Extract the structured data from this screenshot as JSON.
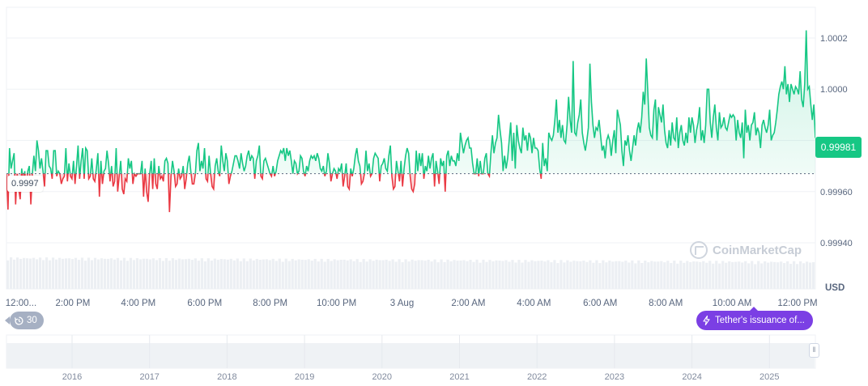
{
  "chart_data": {
    "type": "area",
    "title": "",
    "unit_label": "USD",
    "current_price": "0.99981",
    "open_price_label": "0.9997",
    "baseline": 0.99967,
    "ylim": [
      0.99922,
      1.00032
    ],
    "y_ticks": [
      {
        "value": 1.0002,
        "label": "1.0002"
      },
      {
        "value": 1.0,
        "label": "1.0000"
      },
      {
        "value": 0.9998,
        "label": ""
      },
      {
        "value": 0.9996,
        "label": "0.99960"
      },
      {
        "value": 0.9994,
        "label": "0.99940"
      }
    ],
    "x_ticks": [
      "12:00...",
      "2:00 PM",
      "4:00 PM",
      "6:00 PM",
      "8:00 PM",
      "10:00 PM",
      "3 Aug",
      "2:00 AM",
      "4:00 AM",
      "6:00 AM",
      "8:00 AM",
      "10:00 AM",
      "12:00 PM"
    ],
    "x_tick_fractions": [
      0.018,
      0.082,
      0.163,
      0.245,
      0.326,
      0.408,
      0.489,
      0.571,
      0.652,
      0.734,
      0.815,
      0.897,
      0.978
    ],
    "series_values": [
      0.99967,
      0.99953,
      0.99977,
      0.99969,
      0.99972,
      0.99975,
      0.99955,
      0.99967,
      0.99961,
      0.99957,
      0.99969,
      0.99964,
      0.99968,
      0.9996,
      0.99968,
      0.9997,
      0.99955,
      0.99967,
      0.99974,
      0.99968,
      0.9998,
      0.99976,
      0.99969,
      0.99973,
      0.99968,
      0.99962,
      0.99976,
      0.99976,
      0.9997,
      0.99969,
      0.99965,
      0.99976,
      0.99976,
      0.99966,
      0.99968,
      0.99967,
      0.99963,
      0.99965,
      0.99966,
      0.99977,
      0.99964,
      0.99971,
      0.99966,
      0.99965,
      0.99972,
      0.99963,
      0.9997,
      0.99978,
      0.99965,
      0.99972,
      0.99977,
      0.99965,
      0.99977,
      0.99976,
      0.99965,
      0.99966,
      0.99973,
      0.99965,
      0.99964,
      0.99969,
      0.99975,
      0.99958,
      0.99972,
      0.99963,
      0.99968,
      0.99969,
      0.99976,
      0.99971,
      0.99964,
      0.9997,
      0.99962,
      0.99964,
      0.99977,
      0.9996,
      0.99966,
      0.99972,
      0.99961,
      0.99959,
      0.99965,
      0.99964,
      0.99973,
      0.99969,
      0.99972,
      0.99963,
      0.99967,
      0.99966,
      0.99967,
      0.99967,
      0.99967,
      0.99972,
      0.99958,
      0.99969,
      0.9996,
      0.99956,
      0.99967,
      0.99972,
      0.99961,
      0.99973,
      0.99963,
      0.99961,
      0.9997,
      0.99965,
      0.99966,
      0.99964,
      0.99972,
      0.99973,
      0.99971,
      0.99952,
      0.99966,
      0.99972,
      0.99968,
      0.99962,
      0.99963,
      0.99969,
      0.99965,
      0.99966,
      0.9997,
      0.99961,
      0.99965,
      0.99971,
      0.99974,
      0.99968,
      0.99963,
      0.99963,
      0.99967,
      0.99976,
      0.99979,
      0.99968,
      0.99972,
      0.99969,
      0.99977,
      0.99965,
      0.99964,
      0.99974,
      0.99967,
      0.99962,
      0.99961,
      0.9997,
      0.99973,
      0.99968,
      0.99966,
      0.99978,
      0.99972,
      0.99968,
      0.99975,
      0.99972,
      0.99963,
      0.99966,
      0.99968,
      0.99971,
      0.99974,
      0.99974,
      0.99972,
      0.99969,
      0.99975,
      0.99971,
      0.99968,
      0.9997,
      0.99974,
      0.99976,
      0.99972,
      0.99974,
      0.99973,
      0.99965,
      0.99972,
      0.99974,
      0.99978,
      0.99966,
      0.99965,
      0.99972,
      0.99973,
      0.99971,
      0.99969,
      0.99967,
      0.99966,
      0.9997,
      0.99966,
      0.99968,
      0.99972,
      0.99974,
      0.99976,
      0.99975,
      0.99977,
      0.99972,
      0.99977,
      0.99974,
      0.99976,
      0.99972,
      0.99967,
      0.99972,
      0.99971,
      0.99967,
      0.99968,
      0.99974,
      0.99973,
      0.99968,
      0.99966,
      0.9997,
      0.99968,
      0.99972,
      0.99974,
      0.99973,
      0.99974,
      0.99972,
      0.99975,
      0.99973,
      0.99969,
      0.99968,
      0.9997,
      0.99966,
      0.99968,
      0.99975,
      0.99971,
      0.99964,
      0.99967,
      0.99969,
      0.99968,
      0.99965,
      0.99969,
      0.99968,
      0.99971,
      0.99962,
      0.99966,
      0.99971,
      0.99962,
      0.99961,
      0.99969,
      0.99966,
      0.99969,
      0.99974,
      0.99977,
      0.99972,
      0.9997,
      0.99963,
      0.99964,
      0.99967,
      0.99976,
      0.99968,
      0.99971,
      0.99966,
      0.99967,
      0.99973,
      0.99975,
      0.99974,
      0.99973,
      0.99964,
      0.9997,
      0.99971,
      0.99973,
      0.99969,
      0.99968,
      0.99974,
      0.99978,
      0.99966,
      0.99961,
      0.99962,
      0.99972,
      0.99968,
      0.99964,
      0.99972,
      0.99962,
      0.99969,
      0.99974,
      0.99977,
      0.99975,
      0.99966,
      0.99961,
      0.9996,
      0.99963,
      0.99976,
      0.99968,
      0.99975,
      0.9997,
      0.99975,
      0.99965,
      0.9997,
      0.99968,
      0.99974,
      0.99969,
      0.99973,
      0.99975,
      0.99962,
      0.99972,
      0.99968,
      0.99963,
      0.99973,
      0.9997,
      0.99972,
      0.9996,
      0.99974,
      0.99976,
      0.9997,
      0.99974,
      0.99972,
      0.99972,
      0.9997,
      0.99975,
      0.99972,
      0.99983,
      0.99979,
      0.99975,
      0.99978,
      0.9998,
      0.99981,
      0.99977,
      0.99977,
      0.99971,
      0.99967,
      0.99967,
      0.99973,
      0.99966,
      0.99972,
      0.99967,
      0.99967,
      0.99973,
      0.99975,
      0.99967,
      0.99966,
      0.99975,
      0.99982,
      0.99975,
      0.99979,
      0.99981,
      0.9999,
      0.99984,
      0.99979,
      0.99968,
      0.99974,
      0.99969,
      0.99973,
      0.9998,
      0.99987,
      0.99972,
      0.99983,
      0.99969,
      0.99986,
      0.9998,
      0.99977,
      0.99975,
      0.99985,
      0.9998,
      0.99982,
      0.99976,
      0.99983,
      0.99981,
      0.99975,
      0.99981,
      0.99977,
      0.99977,
      0.99976,
      0.99969,
      0.99965,
      0.99979,
      0.9997,
      0.99973,
      0.99968,
      0.99983,
      0.99981,
      0.9998,
      0.99982,
      0.99988,
      0.99996,
      0.99983,
      0.99988,
      0.99981,
      0.99986,
      0.9998,
      0.99979,
      0.99986,
      0.99997,
      0.99988,
      0.99983,
      1.00011,
      0.99983,
      0.99982,
      0.99987,
      0.9999,
      0.99996,
      0.99983,
      0.99979,
      0.99976,
      0.9998,
      0.99985,
      1.0001,
      0.99995,
      0.99986,
      0.99981,
      0.99985,
      0.99984,
      0.99988,
      0.99982,
      0.99976,
      0.99978,
      0.99973,
      0.9998,
      0.99982,
      0.9998,
      0.99974,
      0.9998,
      0.99984,
      0.99975,
      0.99992,
      0.99989,
      0.99986,
      0.99976,
      0.9997,
      0.9998,
      0.99978,
      0.99982,
      0.99976,
      0.99972,
      0.99977,
      0.99982,
      0.99978,
      0.99984,
      0.99987,
      0.99983,
      0.99989,
      0.99999,
      0.99994,
      1.00012,
      0.99999,
      0.99985,
      0.99982,
      0.99981,
      0.99992,
      0.99996,
      0.9998,
      0.99993,
      0.9999,
      0.99987,
      0.99994,
      0.99984,
      0.99979,
      0.99977,
      0.99984,
      0.99978,
      0.99987,
      0.99981,
      0.9998,
      0.99989,
      0.99977,
      0.99983,
      0.99986,
      0.9998,
      0.99978,
      0.99983,
      0.99979,
      0.99989,
      0.99983,
      0.99989,
      0.99986,
      0.99979,
      0.99984,
      0.99987,
      0.99993,
      0.9998,
      0.99984,
      0.99979,
      0.99986,
      1.0,
      1.0,
      0.99987,
      0.99981,
      0.99989,
      0.99994,
      0.99985,
      0.9998,
      0.99991,
      0.99985,
      0.99986,
      0.99989,
      0.99985,
      0.99984,
      0.99987,
      0.9999,
      0.99989,
      0.9999,
      0.99989,
      0.9998,
      0.99988,
      0.99983,
      0.99981,
      0.99987,
      0.99973,
      0.99992,
      0.99983,
      0.99986,
      0.9998,
      0.99986,
      0.99987,
      0.99991,
      0.99982,
      0.99985,
      0.99983,
      0.99977,
      0.99986,
      0.99988,
      0.99985,
      0.99983,
      0.99986,
      0.99992,
      0.9998,
      0.99982,
      0.99983,
      0.99987,
      0.99992,
      0.99998,
      1.00001,
      1.00003,
      1.0,
      1.00009,
      0.99998,
      1.00002,
      0.99995,
      1.00002,
      1.0,
      0.99998,
      1.00001,
      1.0,
      0.99998,
      1.00007,
      0.99996,
      0.99993,
      1.00002,
      1.00023,
      1.0,
      1.00001,
      0.99994,
      0.99988,
      0.99994,
      0.99981
    ],
    "volume_level": 0.85,
    "navigator_years": [
      "2016",
      "2017",
      "2018",
      "2019",
      "2020",
      "2021",
      "2022",
      "2023",
      "2024",
      "2025"
    ],
    "colors": {
      "up": "#16c784",
      "down": "#ea3943",
      "grid": "#eff2f5",
      "axis_text": "#58667e"
    }
  },
  "badges": {
    "history_count": "30",
    "event_label": "Tether's issuance of..."
  },
  "watermark": "CoinMarketCap",
  "icons": {
    "history": "history-icon",
    "event": "lightning-icon",
    "handle": "grip-icon"
  }
}
